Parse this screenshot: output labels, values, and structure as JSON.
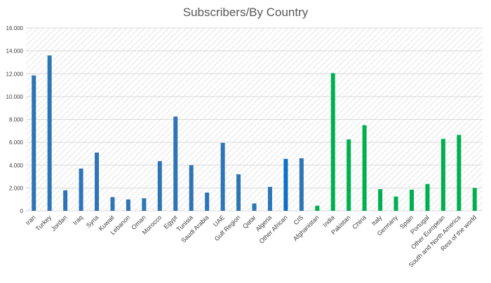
{
  "chart_data": {
    "type": "bar",
    "title": "Subscribers/By Country",
    "xlabel": "",
    "ylabel": "",
    "ylim": [
      0,
      16000
    ],
    "y_ticks": [
      "0",
      "2.000",
      "4.000",
      "6.000",
      "8.000",
      "10.000",
      "12.000",
      "14.000",
      "16.000"
    ],
    "grid": true,
    "categories": [
      "Iran",
      "Turkey",
      "Jordan",
      "Iraq",
      "Syria",
      "Kuwait",
      "Lebanon",
      "Oman",
      "Morocco",
      "Egypt",
      "Tunisia",
      "Saudi Arabia",
      "UAE",
      "Gulf Region",
      "Qatar",
      "Algeria",
      "Other African",
      "CIS",
      "Afghanistan",
      "India",
      "Pakistan",
      "China",
      "Italy",
      "Germany",
      "Spain",
      "Portugal",
      "Other European",
      "South and North America",
      "Rest of the world"
    ],
    "values": [
      11850,
      13600,
      1800,
      3700,
      5100,
      1200,
      1000,
      1100,
      4350,
      8250,
      4000,
      1600,
      5950,
      3200,
      650,
      2100,
      4550,
      4600,
      450,
      12050,
      6250,
      7500,
      1900,
      1250,
      1850,
      2350,
      6300,
      6650,
      2000
    ],
    "bar_colors": [
      "#2e75b6",
      "#2e75b6",
      "#2e75b6",
      "#2e75b6",
      "#2e75b6",
      "#2e75b6",
      "#2e75b6",
      "#2e75b6",
      "#2e75b6",
      "#2e75b6",
      "#2e75b6",
      "#2e75b6",
      "#2e75b6",
      "#2e75b6",
      "#2e75b6",
      "#2e75b6",
      "#0f6fc6",
      "#2e75b6",
      "#00b050",
      "#00b050",
      "#00b050",
      "#00b050",
      "#00b050",
      "#00b050",
      "#00b050",
      "#00b050",
      "#00b050",
      "#00b050",
      "#00b050"
    ],
    "colors": {
      "blue": "#2e75b6",
      "green": "#00b050",
      "grid": "#d9d9d9",
      "hatch": "#e4e4e4",
      "axis_text": "#404040"
    }
  }
}
